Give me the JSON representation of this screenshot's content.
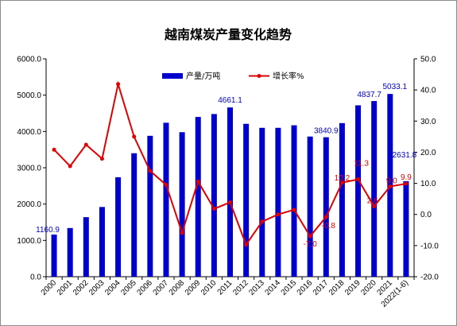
{
  "chart_data": {
    "type": "bar",
    "title": "越南煤炭产量变化趋势",
    "categories": [
      "2000",
      "2001",
      "2002",
      "2003",
      "2004",
      "2005",
      "2006",
      "2007",
      "2008",
      "2009",
      "2010",
      "2011",
      "2012",
      "2013",
      "2014",
      "2015",
      "2016",
      "2017",
      "2018",
      "2019",
      "2020",
      "2021",
      "2022(1-6)"
    ],
    "series": [
      {
        "name": "产量/万吨",
        "type": "bar",
        "axis": "left",
        "color": "#0000cc",
        "values": [
          1160.9,
          1340,
          1640,
          1920,
          2740,
          3400,
          3880,
          4240,
          3980,
          4400,
          4480,
          4661.1,
          4210,
          4100,
          4100,
          4170,
          3860,
          3840.9,
          4230,
          4720,
          4837.7,
          5033.1,
          2631.8
        ]
      },
      {
        "name": "增长率%",
        "type": "line",
        "axis": "right",
        "color": "#e00000",
        "values": [
          20.8,
          15.5,
          22.4,
          17.9,
          41.9,
          25.0,
          14.0,
          9.5,
          -5.9,
          10.6,
          1.8,
          3.9,
          -9.7,
          -2.3,
          0.0,
          1.5,
          -7.0,
          -0.8,
          10.2,
          11.3,
          2.6,
          9.0,
          9.9
        ]
      }
    ],
    "bar_labels": [
      {
        "index": 0,
        "text": "1160.9"
      },
      {
        "index": 11,
        "text": "4661.1"
      },
      {
        "index": 17,
        "text": "3840.9"
      },
      {
        "index": 20,
        "text": "4837.7"
      },
      {
        "index": 21,
        "text": "5033.1"
      },
      {
        "index": 22,
        "text": "2631.8"
      }
    ],
    "line_labels": [
      {
        "index": 16,
        "text": "-7.0"
      },
      {
        "index": 17,
        "text": "-0.8"
      },
      {
        "index": 18,
        "text": "10.2"
      },
      {
        "index": 19,
        "text": "11.3"
      },
      {
        "index": 20,
        "text": "2.6"
      },
      {
        "index": 21,
        "text": "9.0"
      },
      {
        "index": 22,
        "text": "9.9"
      }
    ],
    "y_left": {
      "min": 0,
      "max": 6000,
      "step": 1000,
      "tick_labels": [
        "0.0",
        "1000.0",
        "2000.0",
        "3000.0",
        "4000.0",
        "5000.0",
        "6000.0"
      ]
    },
    "y_right": {
      "min": -20,
      "max": 50,
      "step": 10,
      "tick_labels": [
        "-20.0",
        "-10.0",
        "0.0",
        "10.0",
        "20.0",
        "30.0",
        "40.0",
        "50.0"
      ]
    },
    "legend": {
      "position": "top-right"
    },
    "grid": false
  }
}
